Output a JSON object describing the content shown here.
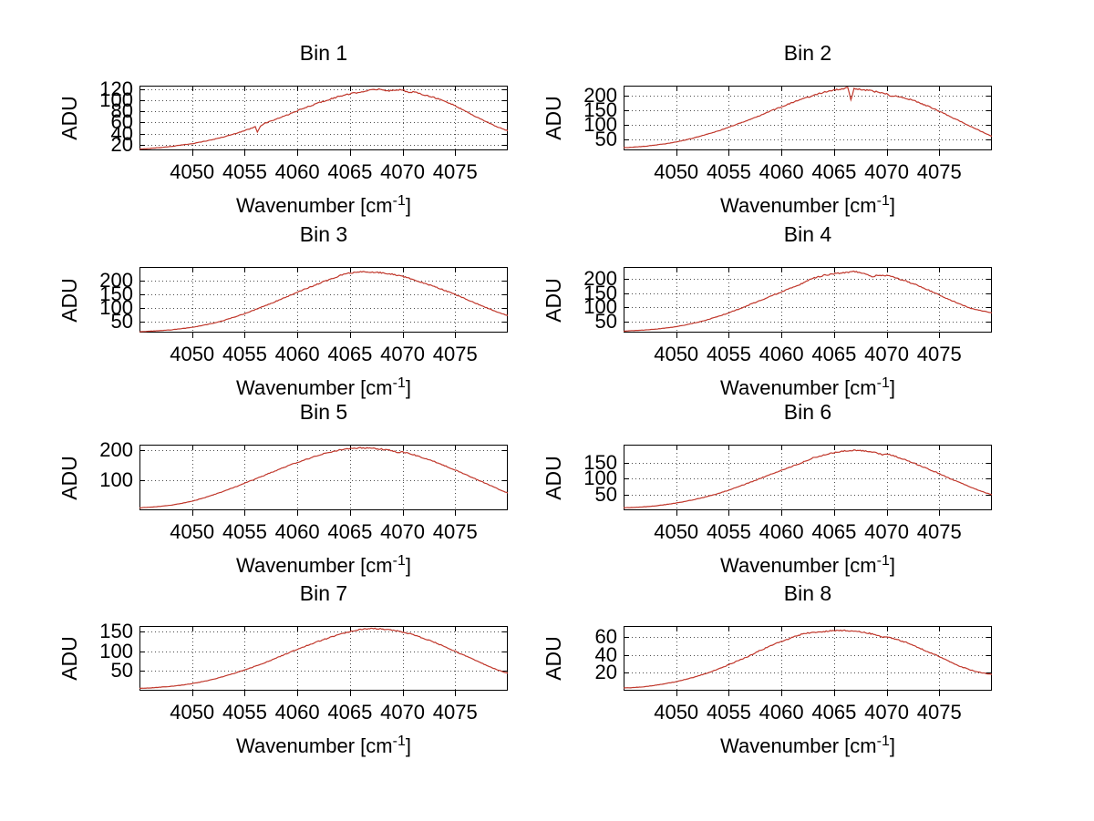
{
  "figure": {
    "background": "#ffffff"
  },
  "chart_data": {
    "type": "line",
    "ylabel": "ADU",
    "xlabel_prefix": "Wavenumber [cm",
    "xlabel_sup": "-1",
    "xlabel_suffix": "]",
    "xlim": [
      4045,
      4080
    ],
    "x_ticks": [
      4050,
      4055,
      4060,
      4065,
      4070,
      4075
    ],
    "grid": "dotted",
    "legend": "none",
    "line_color": "#c0372b",
    "plots": [
      {
        "title": "Bin 1",
        "yticks": [
          20,
          40,
          60,
          80,
          100,
          120
        ],
        "ylim": [
          10,
          126
        ],
        "noise_adu": 1.3,
        "points": [
          [
            4045,
            12
          ],
          [
            4046,
            13.5
          ],
          [
            4047,
            15
          ],
          [
            4048,
            17
          ],
          [
            4049,
            19.5
          ],
          [
            4050,
            22
          ],
          [
            4051,
            25.5
          ],
          [
            4052,
            29.5
          ],
          [
            4053,
            34
          ],
          [
            4054,
            39.5
          ],
          [
            4055,
            45.5
          ],
          [
            4055.7,
            50
          ],
          [
            4056,
            53
          ],
          [
            4056.2,
            43
          ],
          [
            4056.5,
            54
          ],
          [
            4057,
            59
          ],
          [
            4058,
            66
          ],
          [
            4059,
            73
          ],
          [
            4060,
            81
          ],
          [
            4061,
            88
          ],
          [
            4062,
            95
          ],
          [
            4063,
            101
          ],
          [
            4064,
            107
          ],
          [
            4065,
            111
          ],
          [
            4066,
            115
          ],
          [
            4067,
            118
          ],
          [
            4068,
            120
          ],
          [
            4068.6,
            116
          ],
          [
            4069,
            118
          ],
          [
            4070,
            119
          ],
          [
            4070.6,
            113
          ],
          [
            4071,
            115
          ],
          [
            4072,
            110
          ],
          [
            4073,
            105
          ],
          [
            4074,
            98
          ],
          [
            4075,
            90
          ],
          [
            4076,
            80
          ],
          [
            4077,
            70
          ],
          [
            4078,
            61
          ],
          [
            4079,
            52
          ],
          [
            4080,
            45
          ]
        ]
      },
      {
        "title": "Bin 2",
        "yticks": [
          50,
          100,
          150,
          200
        ],
        "ylim": [
          11,
          234
        ],
        "noise_adu": 2.4,
        "points": [
          [
            4045,
            20
          ],
          [
            4046,
            22
          ],
          [
            4047,
            25
          ],
          [
            4048,
            29
          ],
          [
            4049,
            34
          ],
          [
            4050,
            40
          ],
          [
            4051,
            48
          ],
          [
            4052,
            57
          ],
          [
            4053,
            67
          ],
          [
            4054,
            78
          ],
          [
            4055,
            91
          ],
          [
            4056,
            104
          ],
          [
            4057,
            118
          ],
          [
            4058,
            132
          ],
          [
            4059,
            147
          ],
          [
            4060,
            161
          ],
          [
            4061,
            175
          ],
          [
            4062,
            188
          ],
          [
            4063,
            200
          ],
          [
            4064,
            211
          ],
          [
            4065,
            219
          ],
          [
            4066,
            225
          ],
          [
            4066.3,
            227
          ],
          [
            4066.6,
            185
          ],
          [
            4066.9,
            223
          ],
          [
            4068,
            219
          ],
          [
            4069,
            213
          ],
          [
            4070,
            205
          ],
          [
            4070.5,
            197
          ],
          [
            4071,
            198
          ],
          [
            4072,
            189
          ],
          [
            4073,
            177
          ],
          [
            4074,
            162
          ],
          [
            4075,
            146
          ],
          [
            4076,
            128
          ],
          [
            4077,
            111
          ],
          [
            4078,
            93
          ],
          [
            4079,
            76
          ],
          [
            4080,
            60
          ]
        ]
      },
      {
        "title": "Bin 3",
        "yticks": [
          50,
          100,
          150,
          200
        ],
        "ylim": [
          10,
          248
        ],
        "noise_adu": 2.4,
        "points": [
          [
            4045,
            13
          ],
          [
            4046,
            15
          ],
          [
            4047,
            17
          ],
          [
            4048,
            20
          ],
          [
            4049,
            24
          ],
          [
            4050,
            29
          ],
          [
            4051,
            36
          ],
          [
            4052,
            44
          ],
          [
            4053,
            54
          ],
          [
            4054,
            66
          ],
          [
            4055,
            79
          ],
          [
            4056,
            93
          ],
          [
            4057,
            108
          ],
          [
            4058,
            124
          ],
          [
            4059,
            140
          ],
          [
            4060,
            156
          ],
          [
            4061,
            172
          ],
          [
            4062,
            187
          ],
          [
            4063,
            202
          ],
          [
            4064,
            216
          ],
          [
            4065,
            226
          ],
          [
            4066,
            230
          ],
          [
            4067,
            229
          ],
          [
            4068,
            227
          ],
          [
            4069,
            222
          ],
          [
            4070,
            214
          ],
          [
            4071,
            202
          ],
          [
            4072,
            190
          ],
          [
            4073,
            177
          ],
          [
            4074,
            163
          ],
          [
            4075,
            148
          ],
          [
            4076,
            132
          ],
          [
            4077,
            116
          ],
          [
            4078,
            100
          ],
          [
            4079,
            85
          ],
          [
            4080,
            72
          ]
        ]
      },
      {
        "title": "Bin 4",
        "yticks": [
          50,
          100,
          150,
          200
        ],
        "ylim": [
          10,
          242
        ],
        "noise_adu": 2.4,
        "points": [
          [
            4045,
            15
          ],
          [
            4046,
            17
          ],
          [
            4047,
            19
          ],
          [
            4048,
            22
          ],
          [
            4049,
            26
          ],
          [
            4050,
            31
          ],
          [
            4051,
            38
          ],
          [
            4052,
            46
          ],
          [
            4053,
            56
          ],
          [
            4054,
            67
          ],
          [
            4055,
            80
          ],
          [
            4056,
            94
          ],
          [
            4057,
            109
          ],
          [
            4058,
            124
          ],
          [
            4059,
            139
          ],
          [
            4060,
            154
          ],
          [
            4061,
            169
          ],
          [
            4062,
            184
          ],
          [
            4063,
            202
          ],
          [
            4064,
            212
          ],
          [
            4065,
            218
          ],
          [
            4066,
            222
          ],
          [
            4067,
            226
          ],
          [
            4068,
            217
          ],
          [
            4068.7,
            207
          ],
          [
            4069,
            213
          ],
          [
            4070,
            212
          ],
          [
            4071,
            202
          ],
          [
            4072,
            190
          ],
          [
            4073,
            176
          ],
          [
            4074,
            160
          ],
          [
            4075,
            143
          ],
          [
            4076,
            126
          ],
          [
            4077,
            110
          ],
          [
            4078,
            96
          ],
          [
            4079,
            87
          ],
          [
            4080,
            80
          ]
        ]
      },
      {
        "title": "Bin 5",
        "yticks": [
          100,
          200
        ],
        "ylim": [
          0,
          218
        ],
        "noise_adu": 2.0,
        "points": [
          [
            4045,
            8
          ],
          [
            4046,
            10
          ],
          [
            4047,
            13
          ],
          [
            4048,
            17
          ],
          [
            4049,
            23
          ],
          [
            4050,
            30
          ],
          [
            4051,
            40
          ],
          [
            4052,
            51
          ],
          [
            4053,
            63
          ],
          [
            4054,
            76
          ],
          [
            4055,
            90
          ],
          [
            4056,
            104
          ],
          [
            4057,
            118
          ],
          [
            4058,
            132
          ],
          [
            4059,
            146
          ],
          [
            4060,
            159
          ],
          [
            4061,
            171
          ],
          [
            4062,
            182
          ],
          [
            4063,
            193
          ],
          [
            4064,
            200
          ],
          [
            4065,
            205
          ],
          [
            4066,
            207
          ],
          [
            4067,
            206
          ],
          [
            4068,
            203
          ],
          [
            4069,
            198
          ],
          [
            4069.6,
            191
          ],
          [
            4070,
            194
          ],
          [
            4071,
            185
          ],
          [
            4072,
            174
          ],
          [
            4073,
            162
          ],
          [
            4074,
            148
          ],
          [
            4075,
            134
          ],
          [
            4076,
            119
          ],
          [
            4077,
            103
          ],
          [
            4078,
            88
          ],
          [
            4079,
            72
          ],
          [
            4080,
            57
          ]
        ]
      },
      {
        "title": "Bin 6",
        "yticks": [
          50,
          100,
          150
        ],
        "ylim": [
          0,
          208
        ],
        "noise_adu": 2.0,
        "points": [
          [
            4045,
            8
          ],
          [
            4046,
            9
          ],
          [
            4047,
            11
          ],
          [
            4048,
            14
          ],
          [
            4049,
            18
          ],
          [
            4050,
            23
          ],
          [
            4051,
            29
          ],
          [
            4052,
            36
          ],
          [
            4053,
            44
          ],
          [
            4054,
            53
          ],
          [
            4055,
            64
          ],
          [
            4056,
            76
          ],
          [
            4057,
            88
          ],
          [
            4058,
            101
          ],
          [
            4059,
            114
          ],
          [
            4060,
            127
          ],
          [
            4061,
            139
          ],
          [
            4062,
            152
          ],
          [
            4063,
            166
          ],
          [
            4064,
            175
          ],
          [
            4065,
            183
          ],
          [
            4066,
            188
          ],
          [
            4067,
            190
          ],
          [
            4068,
            188
          ],
          [
            4069,
            183
          ],
          [
            4069.6,
            176
          ],
          [
            4070,
            179
          ],
          [
            4071,
            169
          ],
          [
            4072,
            157
          ],
          [
            4073,
            144
          ],
          [
            4074,
            130
          ],
          [
            4075,
            116
          ],
          [
            4076,
            101
          ],
          [
            4077,
            87
          ],
          [
            4078,
            73
          ],
          [
            4079,
            60
          ],
          [
            4080,
            49
          ]
        ]
      },
      {
        "title": "Bin 7",
        "yticks": [
          50,
          100,
          150
        ],
        "ylim": [
          0,
          164
        ],
        "noise_adu": 1.5,
        "points": [
          [
            4045,
            6
          ],
          [
            4046,
            7
          ],
          [
            4047,
            9
          ],
          [
            4048,
            11
          ],
          [
            4049,
            14
          ],
          [
            4050,
            18
          ],
          [
            4051,
            23
          ],
          [
            4052,
            29
          ],
          [
            4053,
            36
          ],
          [
            4054,
            44
          ],
          [
            4055,
            53
          ],
          [
            4056,
            62
          ],
          [
            4057,
            72
          ],
          [
            4058,
            83
          ],
          [
            4059,
            94
          ],
          [
            4060,
            105
          ],
          [
            4061,
            115
          ],
          [
            4062,
            125
          ],
          [
            4063,
            134
          ],
          [
            4064,
            143
          ],
          [
            4065,
            150
          ],
          [
            4066,
            155
          ],
          [
            4067,
            158
          ],
          [
            4068,
            157
          ],
          [
            4069,
            154
          ],
          [
            4070,
            149
          ],
          [
            4071,
            142
          ],
          [
            4072,
            133
          ],
          [
            4073,
            123
          ],
          [
            4074,
            112
          ],
          [
            4075,
            100
          ],
          [
            4076,
            88
          ],
          [
            4077,
            76
          ],
          [
            4078,
            64
          ],
          [
            4079,
            53
          ],
          [
            4080,
            44
          ]
        ]
      },
      {
        "title": "Bin 8",
        "yticks": [
          20,
          40,
          60
        ],
        "ylim": [
          0,
          72
        ],
        "noise_adu": 0.8,
        "points": [
          [
            4045,
            3
          ],
          [
            4046,
            3.5
          ],
          [
            4047,
            4.5
          ],
          [
            4048,
            6
          ],
          [
            4049,
            8
          ],
          [
            4050,
            10
          ],
          [
            4051,
            13
          ],
          [
            4052,
            16
          ],
          [
            4053,
            20
          ],
          [
            4054,
            24
          ],
          [
            4055,
            29
          ],
          [
            4056,
            34
          ],
          [
            4057,
            39
          ],
          [
            4058,
            45
          ],
          [
            4059,
            50
          ],
          [
            4060,
            55
          ],
          [
            4061,
            59
          ],
          [
            4062,
            63
          ],
          [
            4063,
            65
          ],
          [
            4064,
            66
          ],
          [
            4065,
            67
          ],
          [
            4066,
            67
          ],
          [
            4067,
            66
          ],
          [
            4068,
            64.5
          ],
          [
            4069,
            62.5
          ],
          [
            4069.6,
            59
          ],
          [
            4070,
            60
          ],
          [
            4071,
            57
          ],
          [
            4072,
            53
          ],
          [
            4073,
            48
          ],
          [
            4074,
            43
          ],
          [
            4075,
            38
          ],
          [
            4076,
            32
          ],
          [
            4077,
            27
          ],
          [
            4078,
            23
          ],
          [
            4079,
            20
          ],
          [
            4080,
            18
          ]
        ]
      }
    ]
  }
}
